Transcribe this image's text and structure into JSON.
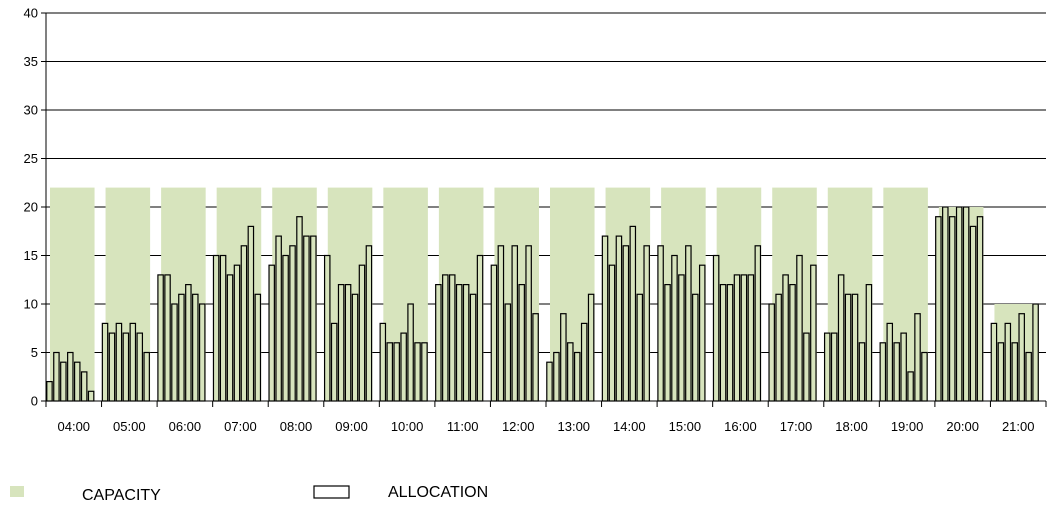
{
  "chart_data": {
    "type": "bar",
    "title": "",
    "xlabel": "",
    "ylabel": "",
    "ylim": [
      0,
      40
    ],
    "yticks": [
      0,
      5,
      10,
      15,
      20,
      25,
      30,
      35,
      40
    ],
    "grid": "horizontal",
    "legend_position": "bottom-left",
    "categories": [
      "04:00",
      "05:00",
      "06:00",
      "07:00",
      "08:00",
      "09:00",
      "10:00",
      "11:00",
      "12:00",
      "13:00",
      "14:00",
      "15:00",
      "16:00",
      "17:00",
      "18:00",
      "19:00",
      "20:00",
      "21:00"
    ],
    "intervals_per_hour": 8,
    "series": [
      {
        "name": "CAPACITY",
        "color": "#d7e4bd",
        "values": [
          22,
          22,
          22,
          22,
          22,
          22,
          22,
          22,
          22,
          22,
          22,
          22,
          22,
          22,
          22,
          22,
          20,
          10
        ]
      },
      {
        "name": "ALLOCATION",
        "color": "#d7e4bd",
        "stroke": "#000000",
        "values": [
          [
            2,
            5,
            4,
            5,
            4,
            3,
            1
          ],
          [
            8,
            7,
            8,
            7,
            8,
            7,
            5
          ],
          [
            13,
            13,
            10,
            11,
            12,
            11,
            10
          ],
          [
            15,
            15,
            13,
            14,
            16,
            18,
            11
          ],
          [
            14,
            17,
            15,
            16,
            19,
            17,
            17
          ],
          [
            15,
            8,
            12,
            12,
            11,
            14,
            16
          ],
          [
            8,
            6,
            6,
            7,
            10,
            6,
            6
          ],
          [
            12,
            13,
            13,
            12,
            12,
            11,
            15
          ],
          [
            14,
            16,
            10,
            16,
            12,
            16,
            9
          ],
          [
            4,
            5,
            9,
            6,
            5,
            8,
            11
          ],
          [
            17,
            14,
            17,
            16,
            18,
            11,
            16
          ],
          [
            16,
            12,
            15,
            13,
            16,
            11,
            14
          ],
          [
            15,
            12,
            12,
            13,
            13,
            13,
            16
          ],
          [
            10,
            11,
            13,
            12,
            15,
            7,
            14
          ],
          [
            7,
            7,
            13,
            11,
            11,
            6,
            12
          ],
          [
            6,
            8,
            6,
            7,
            3,
            9,
            5
          ],
          [
            19,
            20,
            19,
            20,
            20,
            18,
            19
          ],
          [
            8,
            6,
            8,
            6,
            9,
            5,
            10
          ]
        ]
      }
    ]
  }
}
